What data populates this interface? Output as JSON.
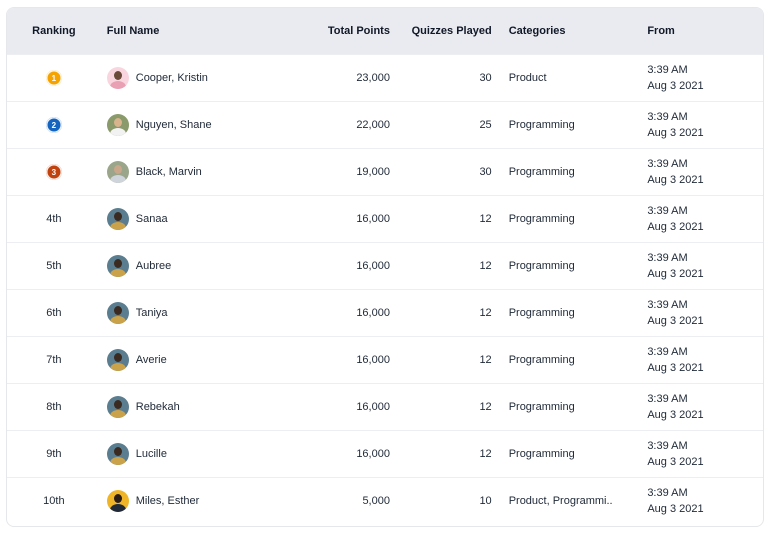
{
  "headers": {
    "ranking": "Ranking",
    "full_name": "Full Name",
    "total_points": "Total Points",
    "quizzes_played": "Quizzes Played",
    "categories": "Categories",
    "from": "From"
  },
  "rows": [
    {
      "rank": "1",
      "medal_color": "#f5a300",
      "name": "Cooper, Kristin",
      "avatar_bg": "#f9d6df",
      "avatar_head": "#6b4a3a",
      "avatar_body": "#e9a0b4",
      "points": "23,000",
      "played": "30",
      "category": "Product",
      "time": "3:39 AM",
      "date": "Aug 3 2021"
    },
    {
      "rank": "2",
      "medal_color": "#1565c0",
      "name": "Nguyen, Shane",
      "avatar_bg": "#8a9a6a",
      "avatar_head": "#d9b38c",
      "avatar_body": "#f2f2f2",
      "points": "22,000",
      "played": "25",
      "category": "Programming",
      "time": "3:39 AM",
      "date": "Aug 3 2021"
    },
    {
      "rank": "3",
      "medal_color": "#c0430f",
      "name": "Black, Marvin",
      "avatar_bg": "#9aa58a",
      "avatar_head": "#c9a78a",
      "avatar_body": "#cfd4da",
      "points": "19,000",
      "played": "30",
      "category": "Programming",
      "time": "3:39 AM",
      "date": "Aug 3 2021"
    },
    {
      "rank": "4th",
      "medal_color": "",
      "name": "Sanaa",
      "avatar_bg": "#5a7d8f",
      "avatar_head": "#3b2a20",
      "avatar_body": "#c9a24a",
      "points": "16,000",
      "played": "12",
      "category": "Programming",
      "time": "3:39 AM",
      "date": "Aug 3 2021"
    },
    {
      "rank": "5th",
      "medal_color": "",
      "name": "Aubree",
      "avatar_bg": "#5a7d8f",
      "avatar_head": "#3b2a20",
      "avatar_body": "#c9a24a",
      "points": "16,000",
      "played": "12",
      "category": "Programming",
      "time": "3:39 AM",
      "date": "Aug 3 2021"
    },
    {
      "rank": "6th",
      "medal_color": "",
      "name": "Taniya",
      "avatar_bg": "#5a7d8f",
      "avatar_head": "#3b2a20",
      "avatar_body": "#c9a24a",
      "points": "16,000",
      "played": "12",
      "category": "Programming",
      "time": "3:39 AM",
      "date": "Aug 3 2021"
    },
    {
      "rank": "7th",
      "medal_color": "",
      "name": "Averie",
      "avatar_bg": "#5a7d8f",
      "avatar_head": "#3b2a20",
      "avatar_body": "#c9a24a",
      "points": "16,000",
      "played": "12",
      "category": "Programming",
      "time": "3:39 AM",
      "date": "Aug 3 2021"
    },
    {
      "rank": "8th",
      "medal_color": "",
      "name": "Rebekah",
      "avatar_bg": "#5a7d8f",
      "avatar_head": "#3b2a20",
      "avatar_body": "#c9a24a",
      "points": "16,000",
      "played": "12",
      "category": "Programming",
      "time": "3:39 AM",
      "date": "Aug 3 2021"
    },
    {
      "rank": "9th",
      "medal_color": "",
      "name": "Lucille",
      "avatar_bg": "#5a7d8f",
      "avatar_head": "#3b2a20",
      "avatar_body": "#c9a24a",
      "points": "16,000",
      "played": "12",
      "category": "Programming",
      "time": "3:39 AM",
      "date": "Aug 3 2021"
    },
    {
      "rank": "10th",
      "medal_color": "",
      "name": "Miles, Esther",
      "avatar_bg": "#f0b429",
      "avatar_head": "#2b1d16",
      "avatar_body": "#1f2937",
      "points": "5,000",
      "played": "10",
      "category": "Product, Programmi..",
      "time": "3:39 AM",
      "date": "Aug 3 2021"
    }
  ]
}
